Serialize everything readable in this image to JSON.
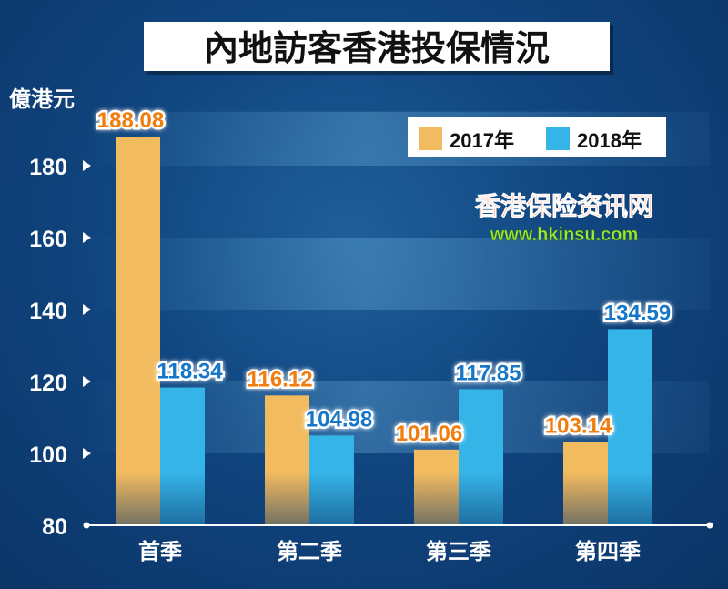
{
  "chart_data": {
    "type": "bar",
    "title": "內地訪客香港投保情況",
    "ylabel": "億港元",
    "ylim": [
      80,
      195
    ],
    "yticks": [
      80,
      100,
      120,
      140,
      160,
      180
    ],
    "categories": [
      "首季",
      "第二季",
      "第三季",
      "第四季"
    ],
    "series": [
      {
        "name": "2017年",
        "values": [
          188.08,
          116.12,
          101.06,
          103.14
        ],
        "value_labels": [
          "188.08",
          "116.12",
          "101.06",
          "103.14"
        ]
      },
      {
        "name": "2018年",
        "values": [
          118.34,
          104.98,
          117.85,
          134.59
        ],
        "value_labels": [
          "118.34",
          "104.98",
          "117.85",
          "134.59"
        ]
      }
    ],
    "legend_position": "top-right",
    "grid": false
  },
  "colors": {
    "series_2017": "#f2bb5f",
    "series_2018": "#35b4e8",
    "label_2017": "#f07d0c",
    "label_2018": "#1677c8"
  },
  "watermark": {
    "line1": "香港保险资讯网",
    "line2": "www.hkinsu.com"
  }
}
